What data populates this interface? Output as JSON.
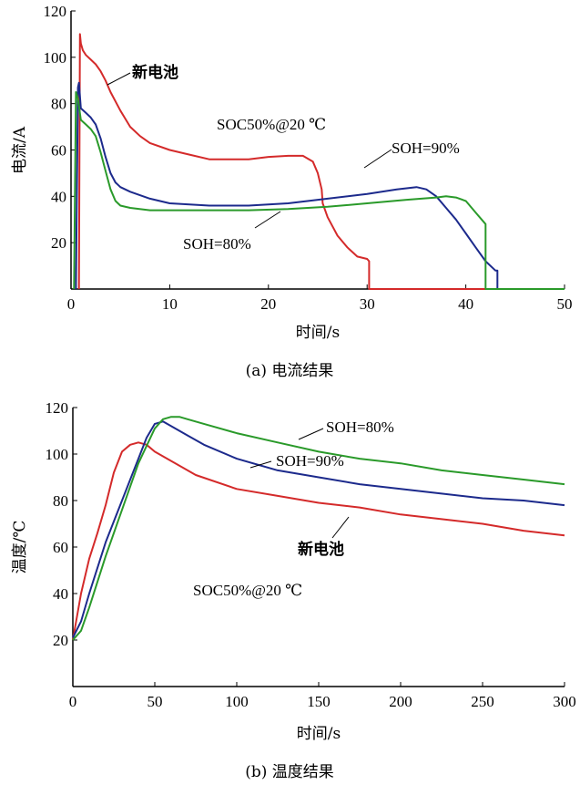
{
  "chart_data": [
    {
      "type": "line",
      "caption": "(a) 电流结果",
      "xlabel": "时间/s",
      "ylabel": "电流/A",
      "xlim": [
        0,
        50
      ],
      "ylim": [
        0,
        120
      ],
      "xticks": [
        0,
        10,
        20,
        30,
        40,
        50
      ],
      "yticks": [
        20,
        40,
        60,
        80,
        100,
        120
      ],
      "yzero_label": "0",
      "condition_label": "SOC50%@20 ℃",
      "series": [
        {
          "name": "新电池",
          "color": "#d42a2a",
          "x": [
            0.8,
            0.9,
            1.0,
            1.2,
            1.5,
            2.0,
            2.5,
            3.0,
            3.5,
            4.0,
            5.0,
            6.0,
            7.0,
            8.0,
            10.0,
            12.0,
            14.0,
            16.0,
            18.0,
            20.0,
            22.0,
            23.5,
            24.5,
            25.0,
            25.4,
            25.5,
            26.0,
            27.0,
            28.0,
            29.0,
            30.0,
            30.2,
            30.2,
            50.0
          ],
          "y": [
            0,
            110,
            106,
            103,
            101,
            99,
            97,
            94,
            90,
            85,
            77,
            70,
            66,
            63,
            60,
            58,
            56,
            56,
            56,
            57,
            57.5,
            57.5,
            55,
            50,
            43,
            37,
            31,
            23,
            18,
            14,
            13,
            12,
            0,
            0
          ]
        },
        {
          "name": "SOH=90%",
          "color": "#1c2a8c",
          "x": [
            0.5,
            0.7,
            0.8,
            1.0,
            1.5,
            2.0,
            2.5,
            3.0,
            3.5,
            4.0,
            4.5,
            5.0,
            6.0,
            8.0,
            10.0,
            14.0,
            18.0,
            22.0,
            26.0,
            30.0,
            33.0,
            35.0,
            36.0,
            37.0,
            38.0,
            39.0,
            40.0,
            41.0,
            42.0,
            43.0,
            43.2,
            43.2,
            50.0
          ],
          "y": [
            0,
            87,
            89,
            78,
            76,
            74,
            71,
            65,
            57,
            50,
            46,
            44,
            42,
            39,
            37,
            36,
            36,
            37,
            39,
            41,
            43,
            44,
            43,
            40,
            35,
            30,
            24,
            18,
            12,
            8,
            8,
            0,
            0
          ]
        },
        {
          "name": "SOH=80%",
          "color": "#2a9a2a",
          "x": [
            0.3,
            0.5,
            0.7,
            1.0,
            1.5,
            2.0,
            2.5,
            3.0,
            3.5,
            4.0,
            4.5,
            5.0,
            6.0,
            8.0,
            10.0,
            14.0,
            18.0,
            22.0,
            26.0,
            30.0,
            34.0,
            37.0,
            38.0,
            39.0,
            40.0,
            41.0,
            42.0,
            42.0,
            50.0
          ],
          "y": [
            0,
            85,
            82,
            73,
            71,
            69,
            66,
            59,
            51,
            43,
            38,
            36,
            35,
            34,
            34,
            34,
            34,
            34.5,
            35.5,
            37,
            38.5,
            39.5,
            40,
            39.5,
            38,
            33,
            28,
            0,
            0
          ]
        }
      ]
    },
    {
      "type": "line",
      "caption": "(b) 温度结果",
      "xlabel": "时间/s",
      "ylabel": "温度/℃",
      "xlim": [
        0,
        300
      ],
      "ylim": [
        0,
        120
      ],
      "xticks": [
        0,
        50,
        100,
        150,
        200,
        250,
        300
      ],
      "yticks": [
        20,
        40,
        60,
        80,
        100,
        120
      ],
      "condition_label": "SOC50%@20 ℃",
      "series": [
        {
          "name": "新电池",
          "color": "#d42a2a",
          "x": [
            0,
            5,
            10,
            15,
            20,
            25,
            30,
            35,
            40,
            45,
            50,
            60,
            75,
            100,
            125,
            150,
            175,
            200,
            225,
            250,
            275,
            300
          ],
          "y": [
            20,
            40,
            55,
            66,
            78,
            92,
            101,
            104,
            105,
            104,
            101,
            97,
            91,
            85,
            82,
            79,
            77,
            74,
            72,
            70,
            67,
            65
          ]
        },
        {
          "name": "SOH=90%",
          "color": "#1c2a8c",
          "x": [
            0,
            5,
            10,
            20,
            30,
            40,
            45,
            50,
            55,
            60,
            70,
            80,
            100,
            125,
            150,
            175,
            200,
            225,
            250,
            275,
            300
          ],
          "y": [
            21,
            28,
            40,
            62,
            80,
            98,
            107,
            113,
            114,
            112,
            108,
            104,
            98,
            93,
            90,
            87,
            85,
            83,
            81,
            80,
            78
          ]
        },
        {
          "name": "SOH=80%",
          "color": "#2a9a2a",
          "x": [
            0,
            5,
            10,
            20,
            30,
            40,
            50,
            55,
            60,
            65,
            70,
            80,
            100,
            125,
            150,
            175,
            200,
            225,
            250,
            275,
            300
          ],
          "y": [
            20,
            24,
            34,
            56,
            76,
            96,
            111,
            115,
            116,
            116,
            115,
            113,
            109,
            105,
            101,
            98,
            96,
            93,
            91,
            89,
            87
          ]
        }
      ]
    }
  ]
}
